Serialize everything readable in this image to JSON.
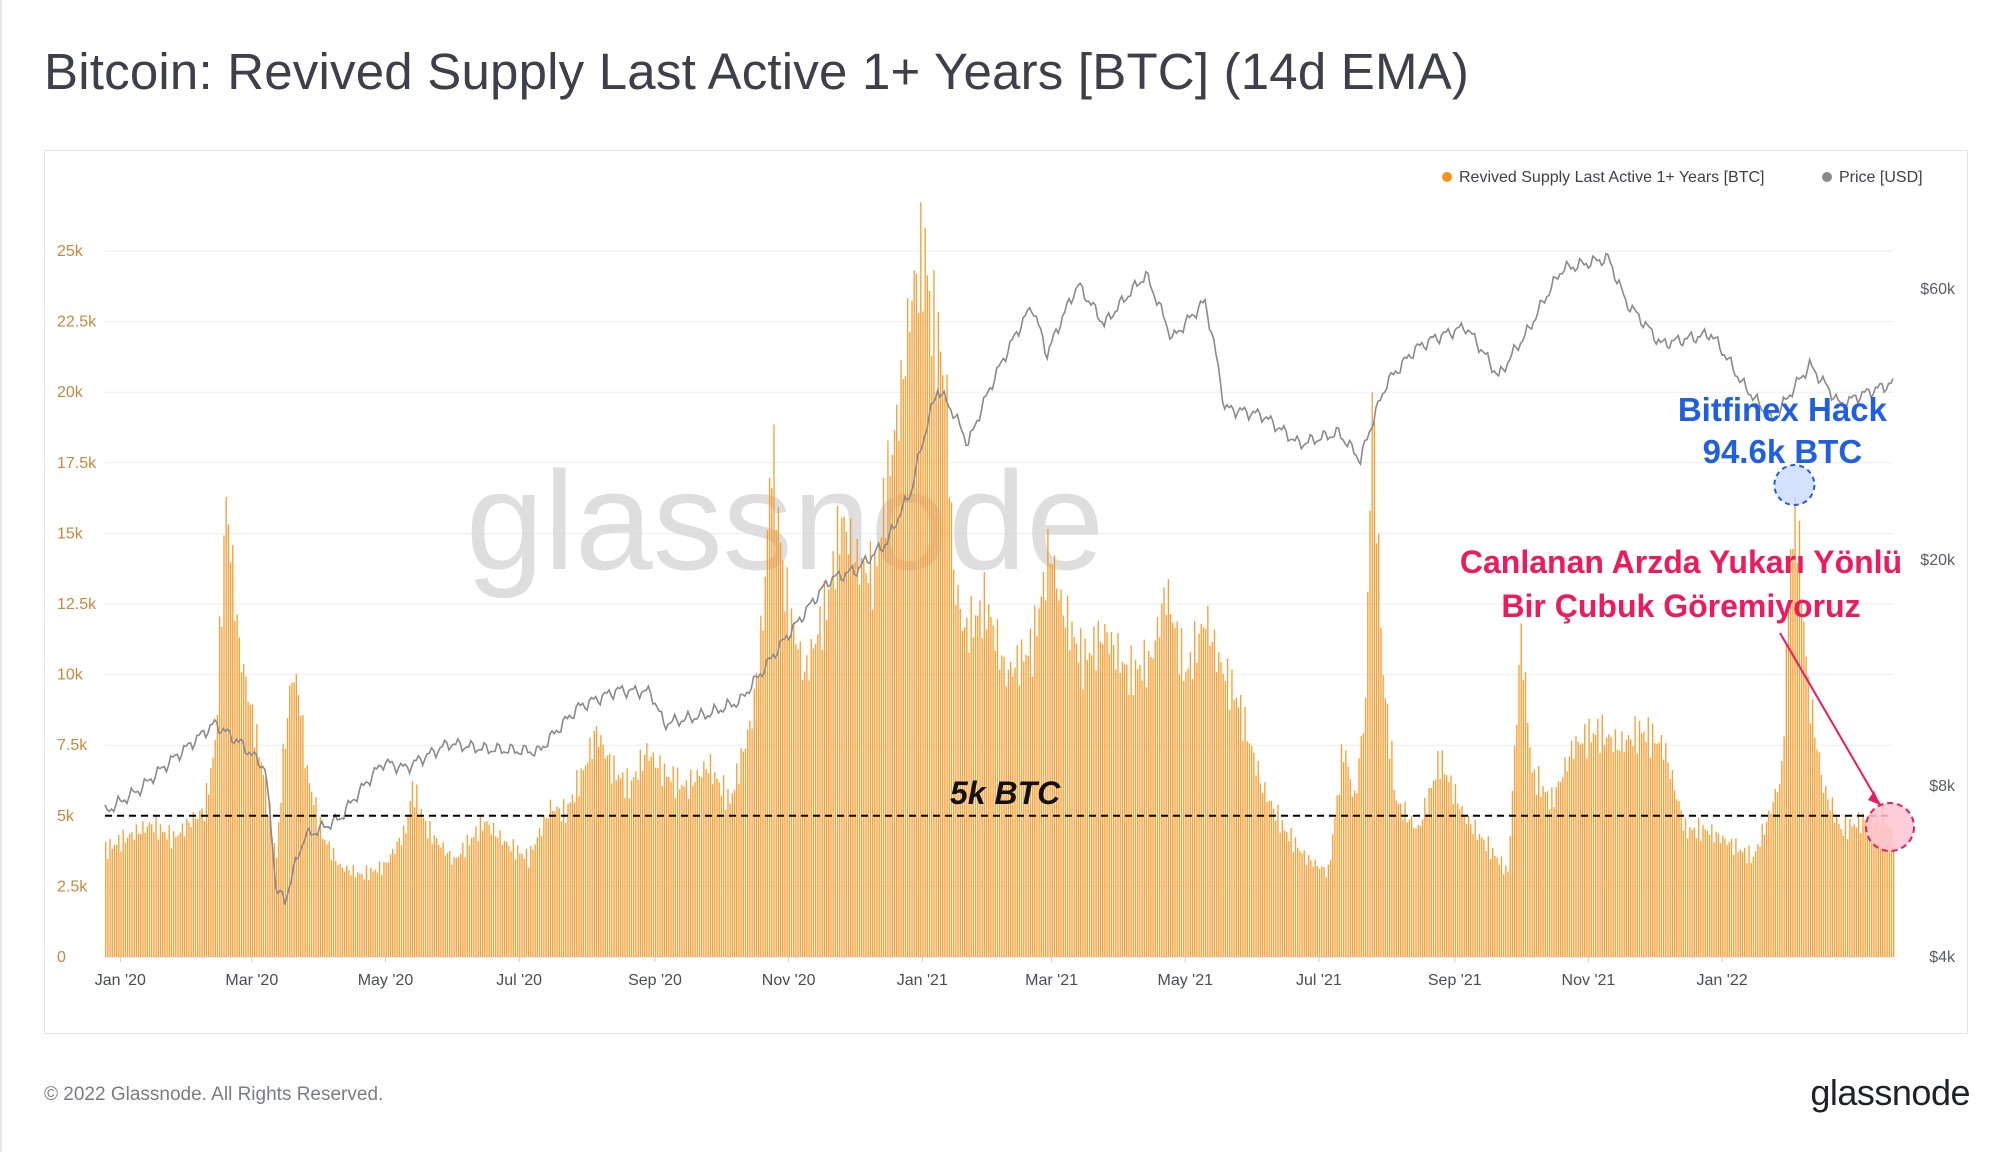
{
  "title": "Bitcoin: Revived Supply Last Active 1+ Years [BTC] (14d EMA)",
  "footer": {
    "copyright": "© 2022 Glassnode. All Rights Reserved.",
    "logo": "glassnode"
  },
  "watermark": "glassnode",
  "colors": {
    "supply": "#f7931a",
    "price": "#8a8a8a",
    "hack": "#1f5fe0",
    "note": "#ef1a5c",
    "axisText": "#c38a3c",
    "grid": "#eceef2"
  },
  "chart_data": {
    "type": "bar",
    "legend": {
      "placement": "top-right",
      "items": [
        {
          "label": "Revived Supply Last Active 1+ Years [BTC]",
          "color": "#f7931a"
        },
        {
          "label": "Price [USD]",
          "color": "#8a8a8a"
        }
      ]
    },
    "x_ticks": [
      "Jan '20",
      "Mar '20",
      "May '20",
      "Jul '20",
      "Sep '20",
      "Nov '20",
      "Jan '21",
      "Mar '21",
      "May '21",
      "Jul '21",
      "Sep '21",
      "Nov '21",
      "Jan '22"
    ],
    "y_left": {
      "ticks": [
        "0",
        "2.5k",
        "5k",
        "7.5k",
        "10k",
        "12.5k",
        "15k",
        "17.5k",
        "20k",
        "22.5k",
        "25k"
      ],
      "range": [
        0,
        25000
      ]
    },
    "y_right": {
      "ticks": [
        "$4k",
        "$8k",
        "$20k",
        "$60k"
      ],
      "scale": "log",
      "range": [
        4000,
        70000
      ]
    },
    "date_range": [
      "2019-12-25",
      "2022-03-20"
    ],
    "series": [
      {
        "name": "Revived Supply Last Active 1+ Years [BTC]",
        "type": "bar",
        "points": [
          [
            "2019-12-25",
            3800
          ],
          [
            "2020-01-05",
            4300
          ],
          [
            "2020-01-15",
            4700
          ],
          [
            "2020-01-25",
            4200
          ],
          [
            "2020-02-03",
            4900
          ],
          [
            "2020-02-08",
            5200
          ],
          [
            "2020-02-13",
            7500
          ],
          [
            "2020-02-18",
            16200
          ],
          [
            "2020-02-20",
            14500
          ],
          [
            "2020-02-24",
            11000
          ],
          [
            "2020-03-01",
            8500
          ],
          [
            "2020-03-06",
            6500
          ],
          [
            "2020-03-12",
            3500
          ],
          [
            "2020-03-15",
            7000
          ],
          [
            "2020-03-19",
            10000
          ],
          [
            "2020-03-22",
            9500
          ],
          [
            "2020-03-26",
            6500
          ],
          [
            "2020-04-02",
            4300
          ],
          [
            "2020-04-10",
            3200
          ],
          [
            "2020-04-20",
            2900
          ],
          [
            "2020-04-30",
            3200
          ],
          [
            "2020-05-10",
            4500
          ],
          [
            "2020-05-13",
            6000
          ],
          [
            "2020-05-20",
            4500
          ],
          [
            "2020-06-01",
            3400
          ],
          [
            "2020-06-15",
            4800
          ],
          [
            "2020-06-25",
            4000
          ],
          [
            "2020-07-05",
            3500
          ],
          [
            "2020-07-15",
            5300
          ],
          [
            "2020-07-22",
            5100
          ],
          [
            "2020-07-30",
            6600
          ],
          [
            "2020-08-05",
            8000
          ],
          [
            "2020-08-12",
            6700
          ],
          [
            "2020-08-20",
            6000
          ],
          [
            "2020-08-28",
            7300
          ],
          [
            "2020-09-05",
            6500
          ],
          [
            "2020-09-15",
            6000
          ],
          [
            "2020-09-25",
            6800
          ],
          [
            "2020-10-05",
            5500
          ],
          [
            "2020-10-15",
            8500
          ],
          [
            "2020-10-20",
            12000
          ],
          [
            "2020-10-24",
            18000
          ],
          [
            "2020-10-30",
            13000
          ],
          [
            "2020-11-08",
            10000
          ],
          [
            "2020-11-18",
            12500
          ],
          [
            "2020-11-25",
            15500
          ],
          [
            "2020-12-02",
            14000
          ],
          [
            "2020-12-10",
            13500
          ],
          [
            "2020-12-16",
            17000
          ],
          [
            "2020-12-22",
            20000
          ],
          [
            "2020-12-27",
            23500
          ],
          [
            "2021-01-02",
            25000
          ],
          [
            "2021-01-05",
            22500
          ],
          [
            "2021-01-09",
            21500
          ],
          [
            "2021-01-12",
            19500
          ],
          [
            "2021-01-15",
            13500
          ],
          [
            "2021-01-20",
            11500
          ],
          [
            "2021-01-30",
            12500
          ],
          [
            "2021-02-08",
            10000
          ],
          [
            "2021-02-20",
            11000
          ],
          [
            "2021-02-28",
            14500
          ],
          [
            "2021-03-05",
            12500
          ],
          [
            "2021-03-15",
            10500
          ],
          [
            "2021-03-25",
            11500
          ],
          [
            "2021-04-05",
            10000
          ],
          [
            "2021-04-15",
            10500
          ],
          [
            "2021-04-22",
            13000
          ],
          [
            "2021-05-01",
            10000
          ],
          [
            "2021-05-10",
            12000
          ],
          [
            "2021-05-16",
            10500
          ],
          [
            "2021-05-25",
            9000
          ],
          [
            "2021-06-05",
            6000
          ],
          [
            "2021-06-15",
            4500
          ],
          [
            "2021-06-25",
            3500
          ],
          [
            "2021-07-05",
            3000
          ],
          [
            "2021-07-12",
            7500
          ],
          [
            "2021-07-17",
            5500
          ],
          [
            "2021-07-22",
            9000
          ],
          [
            "2021-07-25",
            20000
          ],
          [
            "2021-07-30",
            10000
          ],
          [
            "2021-08-05",
            5500
          ],
          [
            "2021-08-15",
            4500
          ],
          [
            "2021-08-25",
            7000
          ],
          [
            "2021-09-05",
            5000
          ],
          [
            "2021-09-15",
            4000
          ],
          [
            "2021-09-25",
            3000
          ],
          [
            "2021-10-01",
            11500
          ],
          [
            "2021-10-06",
            6500
          ],
          [
            "2021-10-15",
            5500
          ],
          [
            "2021-10-25",
            7500
          ],
          [
            "2021-11-05",
            8000
          ],
          [
            "2021-11-15",
            7500
          ],
          [
            "2021-11-25",
            8000
          ],
          [
            "2021-12-05",
            7500
          ],
          [
            "2021-12-15",
            4500
          ],
          [
            "2021-12-25",
            4500
          ],
          [
            "2022-01-05",
            4000
          ],
          [
            "2022-01-15",
            3500
          ],
          [
            "2022-01-22",
            5000
          ],
          [
            "2022-01-28",
            6500
          ],
          [
            "2022-02-01",
            14500
          ],
          [
            "2022-02-04",
            15500
          ],
          [
            "2022-02-09",
            9500
          ],
          [
            "2022-02-16",
            6000
          ],
          [
            "2022-02-24",
            4500
          ],
          [
            "2022-03-05",
            4800
          ],
          [
            "2022-03-15",
            5000
          ],
          [
            "2022-03-20",
            4300
          ]
        ]
      },
      {
        "name": "Price [USD]",
        "type": "line",
        "points": [
          [
            "2019-12-25",
            7200
          ],
          [
            "2020-01-10",
            7900
          ],
          [
            "2020-02-01",
            9400
          ],
          [
            "2020-02-13",
            10300
          ],
          [
            "2020-02-25",
            9500
          ],
          [
            "2020-03-07",
            8600
          ],
          [
            "2020-03-12",
            5300
          ],
          [
            "2020-03-16",
            5000
          ],
          [
            "2020-03-25",
            6500
          ],
          [
            "2020-04-10",
            7000
          ],
          [
            "2020-04-30",
            8800
          ],
          [
            "2020-05-10",
            8600
          ],
          [
            "2020-05-30",
            9500
          ],
          [
            "2020-06-15",
            9300
          ],
          [
            "2020-07-10",
            9200
          ],
          [
            "2020-07-28",
            11000
          ],
          [
            "2020-08-15",
            11800
          ],
          [
            "2020-08-30",
            11700
          ],
          [
            "2020-09-05",
            10300
          ],
          [
            "2020-09-25",
            10700
          ],
          [
            "2020-10-10",
            11300
          ],
          [
            "2020-10-21",
            12900
          ],
          [
            "2020-11-05",
            15500
          ],
          [
            "2020-11-20",
            18500
          ],
          [
            "2020-12-02",
            19200
          ],
          [
            "2020-12-16",
            21500
          ],
          [
            "2020-12-27",
            26500
          ],
          [
            "2021-01-08",
            40000
          ],
          [
            "2021-01-14",
            37000
          ],
          [
            "2021-01-22",
            32000
          ],
          [
            "2021-02-08",
            46000
          ],
          [
            "2021-02-20",
            56000
          ],
          [
            "2021-02-27",
            46000
          ],
          [
            "2021-03-13",
            61000
          ],
          [
            "2021-03-25",
            52000
          ],
          [
            "2021-04-13",
            63500
          ],
          [
            "2021-04-25",
            49000
          ],
          [
            "2021-05-10",
            57000
          ],
          [
            "2021-05-19",
            37000
          ],
          [
            "2021-06-05",
            36000
          ],
          [
            "2021-06-22",
            32000
          ],
          [
            "2021-07-10",
            33500
          ],
          [
            "2021-07-20",
            30000
          ],
          [
            "2021-08-01",
            41000
          ],
          [
            "2021-08-14",
            47000
          ],
          [
            "2021-08-22",
            49000
          ],
          [
            "2021-09-06",
            51500
          ],
          [
            "2021-09-21",
            42000
          ],
          [
            "2021-10-05",
            51000
          ],
          [
            "2021-10-20",
            65000
          ],
          [
            "2021-11-10",
            68000
          ],
          [
            "2021-11-18",
            57000
          ],
          [
            "2021-12-04",
            48000
          ],
          [
            "2021-12-27",
            50000
          ],
          [
            "2022-01-10",
            41000
          ],
          [
            "2022-01-24",
            35000
          ],
          [
            "2022-02-10",
            44000
          ],
          [
            "2022-02-24",
            37500
          ],
          [
            "2022-03-05",
            39000
          ],
          [
            "2022-03-20",
            41000
          ]
        ]
      }
    ],
    "annotations": [
      {
        "text": "5k BTC",
        "type": "threshold-line",
        "value": 5000
      },
      {
        "text_lines": [
          "Bitfinex Hack",
          "94.6k BTC"
        ],
        "type": "circle",
        "date": "2022-02-03",
        "color": "#1f5fe0"
      },
      {
        "text_lines": [
          "Canlanan Arzda Yukarı Yönlü",
          "Bir Çubuk Göremiyoruz"
        ],
        "type": "arrow-to-circle",
        "date": "2022-03-15",
        "color": "#ef1a5c"
      }
    ],
    "grid": true
  }
}
